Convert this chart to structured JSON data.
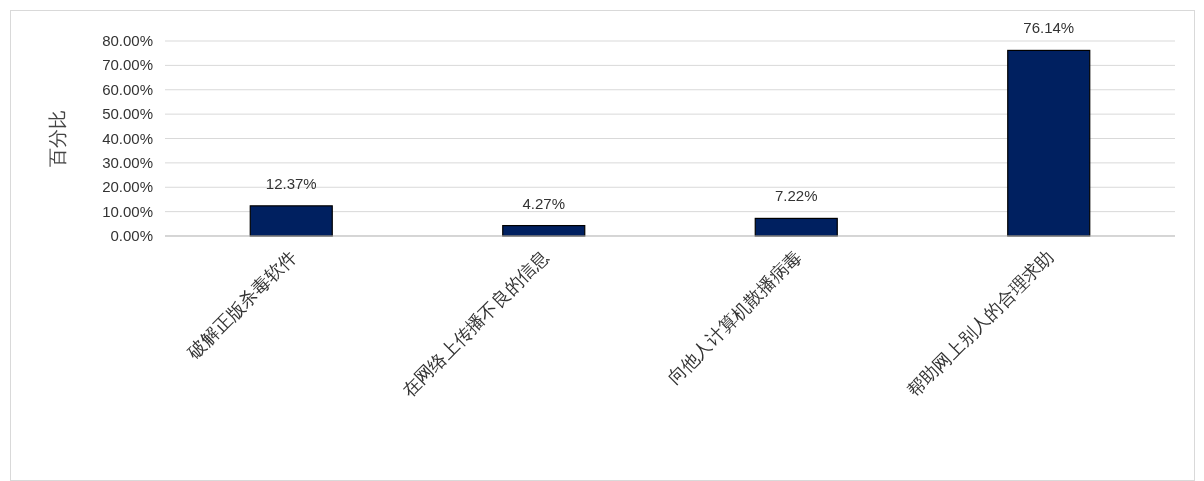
{
  "chart_data": {
    "type": "bar",
    "ylabel": "百分比",
    "categories": [
      "破解正版杀毒软件",
      "在网络上传播不良的信息",
      "向他人计算机散播病毒",
      "帮助网上别人的合理求助"
    ],
    "values": [
      12.37,
      4.27,
      7.22,
      76.14
    ],
    "value_labels": [
      "12.37%",
      "4.27%",
      "7.22%",
      "76.14%"
    ],
    "color": "#002060",
    "ylim": [
      0,
      80
    ],
    "yticks": [
      {
        "value": 0,
        "label": "0.00%"
      },
      {
        "value": 10,
        "label": "10.00%"
      },
      {
        "value": 20,
        "label": "20.00%"
      },
      {
        "value": 30,
        "label": "30.00%"
      },
      {
        "value": 40,
        "label": "40.00%"
      },
      {
        "value": 50,
        "label": "50.00%"
      },
      {
        "value": 60,
        "label": "60.00%"
      },
      {
        "value": 70,
        "label": "70.00%"
      },
      {
        "value": 80,
        "label": "80.00%"
      }
    ],
    "grid": "y"
  }
}
